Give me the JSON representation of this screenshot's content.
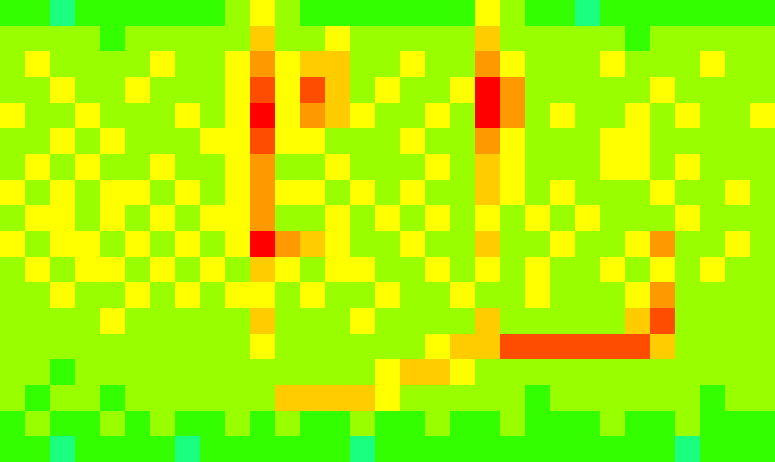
{
  "chart_data": {
    "type": "heatmap",
    "tick_labels": false,
    "xlim": [
      -0.5,
      30.5
    ],
    "ylim": [
      17.5,
      -0.5
    ],
    "zlim": [
      0,
      10
    ],
    "cells": [
      [
        4,
        4,
        3,
        4,
        4,
        4,
        4,
        4,
        4,
        5,
        6,
        5,
        4,
        4,
        4,
        4,
        4,
        4,
        4,
        6,
        5,
        4,
        4,
        3,
        4,
        4,
        4,
        4,
        4,
        4,
        4
      ],
      [
        5,
        5,
        5,
        5,
        4,
        5,
        5,
        5,
        5,
        5,
        7,
        5,
        5,
        6,
        5,
        5,
        5,
        5,
        5,
        7,
        5,
        5,
        5,
        5,
        5,
        4,
        5,
        5,
        5,
        5,
        5
      ],
      [
        5,
        6,
        5,
        5,
        5,
        5,
        6,
        5,
        5,
        6,
        8,
        6,
        7,
        7,
        5,
        5,
        6,
        5,
        5,
        8,
        6,
        5,
        5,
        5,
        6,
        5,
        5,
        5,
        6,
        5,
        5
      ],
      [
        5,
        5,
        6,
        5,
        5,
        6,
        5,
        5,
        5,
        6,
        9,
        6,
        9,
        7,
        5,
        6,
        5,
        5,
        6,
        10,
        8,
        5,
        5,
        5,
        5,
        5,
        6,
        5,
        5,
        5,
        5
      ],
      [
        6,
        5,
        5,
        6,
        5,
        5,
        5,
        6,
        5,
        6,
        10,
        6,
        8,
        7,
        6,
        5,
        5,
        6,
        5,
        10,
        8,
        5,
        6,
        5,
        5,
        6,
        5,
        6,
        5,
        5,
        6
      ],
      [
        5,
        5,
        6,
        5,
        6,
        5,
        5,
        5,
        6,
        6,
        9,
        6,
        6,
        5,
        5,
        5,
        6,
        5,
        5,
        8,
        6,
        5,
        5,
        5,
        6,
        6,
        5,
        5,
        5,
        5,
        5
      ],
      [
        5,
        6,
        5,
        6,
        5,
        5,
        6,
        5,
        5,
        6,
        8,
        5,
        5,
        6,
        5,
        5,
        5,
        6,
        5,
        7,
        6,
        5,
        5,
        5,
        6,
        6,
        5,
        6,
        5,
        5,
        5
      ],
      [
        6,
        5,
        6,
        5,
        6,
        6,
        5,
        6,
        5,
        6,
        8,
        6,
        6,
        5,
        6,
        5,
        6,
        5,
        5,
        7,
        6,
        5,
        6,
        5,
        5,
        5,
        6,
        5,
        5,
        6,
        5
      ],
      [
        5,
        6,
        6,
        5,
        6,
        5,
        6,
        5,
        6,
        6,
        8,
        5,
        5,
        6,
        5,
        6,
        5,
        6,
        5,
        6,
        5,
        6,
        5,
        6,
        5,
        5,
        5,
        6,
        5,
        5,
        5
      ],
      [
        6,
        5,
        6,
        6,
        5,
        6,
        5,
        6,
        5,
        6,
        10,
        8,
        7,
        6,
        5,
        5,
        6,
        5,
        5,
        7,
        5,
        5,
        6,
        5,
        5,
        6,
        8,
        5,
        5,
        6,
        5
      ],
      [
        5,
        6,
        5,
        6,
        6,
        5,
        6,
        5,
        6,
        5,
        7,
        6,
        5,
        6,
        6,
        5,
        5,
        6,
        5,
        6,
        5,
        6,
        5,
        5,
        6,
        5,
        6,
        5,
        6,
        5,
        5
      ],
      [
        5,
        5,
        6,
        5,
        5,
        6,
        5,
        6,
        5,
        6,
        6,
        5,
        6,
        5,
        5,
        6,
        5,
        5,
        6,
        5,
        5,
        6,
        5,
        5,
        5,
        6,
        8,
        5,
        5,
        5,
        5
      ],
      [
        5,
        5,
        5,
        5,
        6,
        5,
        5,
        5,
        5,
        5,
        7,
        5,
        5,
        5,
        6,
        5,
        5,
        5,
        5,
        7,
        5,
        5,
        5,
        5,
        5,
        7,
        9,
        5,
        5,
        5,
        5
      ],
      [
        5,
        5,
        5,
        5,
        5,
        5,
        5,
        5,
        5,
        5,
        6,
        5,
        5,
        5,
        5,
        5,
        5,
        6,
        7,
        7,
        9,
        9,
        9,
        9,
        9,
        9,
        7,
        5,
        5,
        5,
        5
      ],
      [
        5,
        5,
        4,
        5,
        5,
        5,
        5,
        5,
        5,
        5,
        5,
        5,
        5,
        5,
        5,
        6,
        7,
        7,
        6,
        5,
        5,
        5,
        5,
        5,
        5,
        5,
        5,
        5,
        5,
        5,
        5
      ],
      [
        5,
        4,
        5,
        5,
        4,
        5,
        5,
        5,
        5,
        5,
        5,
        7,
        7,
        7,
        7,
        6,
        5,
        5,
        5,
        5,
        5,
        4,
        5,
        5,
        5,
        5,
        5,
        5,
        4,
        5,
        5
      ],
      [
        4,
        5,
        4,
        4,
        5,
        4,
        5,
        4,
        4,
        5,
        4,
        5,
        4,
        4,
        5,
        4,
        4,
        5,
        4,
        4,
        5,
        4,
        4,
        4,
        5,
        4,
        4,
        5,
        4,
        4,
        4
      ],
      [
        4,
        4,
        3,
        4,
        4,
        4,
        4,
        3,
        4,
        4,
        4,
        4,
        4,
        4,
        3,
        4,
        4,
        4,
        4,
        4,
        4,
        4,
        4,
        4,
        4,
        4,
        4,
        3,
        4,
        4,
        4
      ]
    ]
  }
}
